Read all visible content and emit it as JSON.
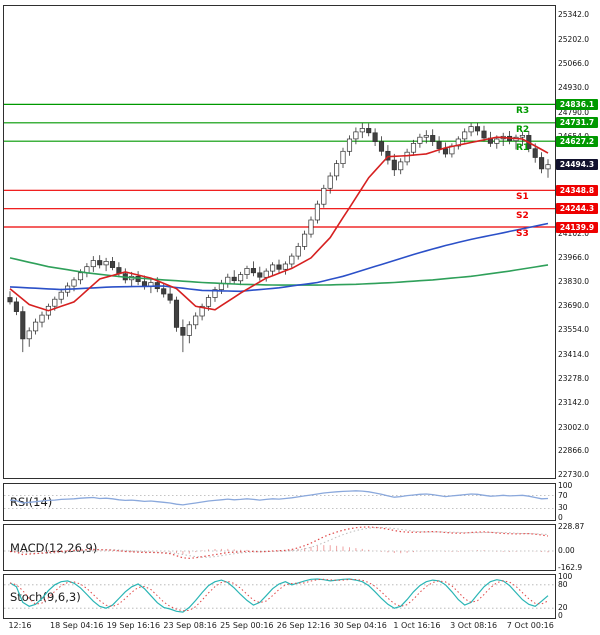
{
  "chart_data": {
    "type": "candlestick-with-indicators",
    "colors": {
      "resistance": "#009900",
      "support": "#ee0000",
      "current_badge": "#12122e",
      "up_candle": "#ffffff",
      "down_candle": "#404040",
      "wick": "#303030",
      "grid": "#b0b0b0",
      "axis_text": "#111111"
    },
    "main": {
      "y_range": [
        22715,
        25395
      ],
      "y_ticks": [
        25342.0,
        25202.0,
        25066.0,
        24930.0,
        24790.0,
        24654.0,
        24102.0,
        23966.0,
        23830.0,
        23690.0,
        23554.0,
        23414.0,
        23278.0,
        23142.0,
        23002.0,
        22866.0,
        22730.0
      ],
      "levels": {
        "resistances": [
          {
            "name": "R3",
            "value": 24836.1
          },
          {
            "name": "R2",
            "value": 24731.7
          },
          {
            "name": "R1",
            "value": 24627.2
          }
        ],
        "supports": [
          {
            "name": "S1",
            "value": 24348.8
          },
          {
            "name": "S2",
            "value": 24244.3
          },
          {
            "name": "S3",
            "value": 24139.9
          }
        ],
        "current_price": 24494.3
      },
      "candles_ohlc": [
        [
          23740,
          23775,
          23700,
          23715
        ],
        [
          23715,
          23740,
          23640,
          23660
        ],
        [
          23660,
          23690,
          23430,
          23505
        ],
        [
          23505,
          23570,
          23460,
          23550
        ],
        [
          23550,
          23620,
          23530,
          23600
        ],
        [
          23600,
          23660,
          23570,
          23640
        ],
        [
          23640,
          23705,
          23615,
          23690
        ],
        [
          23690,
          23745,
          23665,
          23730
        ],
        [
          23730,
          23790,
          23705,
          23770
        ],
        [
          23770,
          23825,
          23745,
          23805
        ],
        [
          23805,
          23855,
          23775,
          23840
        ],
        [
          23840,
          23900,
          23815,
          23880
        ],
        [
          23880,
          23935,
          23855,
          23915
        ],
        [
          23915,
          23975,
          23885,
          23950
        ],
        [
          23950,
          23980,
          23905,
          23925
        ],
        [
          23925,
          23965,
          23890,
          23945
        ],
        [
          23945,
          23970,
          23895,
          23910
        ],
        [
          23910,
          23940,
          23855,
          23875
        ],
        [
          23875,
          23905,
          23820,
          23840
        ],
        [
          23840,
          23885,
          23805,
          23860
        ],
        [
          23860,
          23890,
          23810,
          23830
        ],
        [
          23830,
          23865,
          23785,
          23805
        ],
        [
          23805,
          23845,
          23765,
          23825
        ],
        [
          23825,
          23855,
          23770,
          23790
        ],
        [
          23790,
          23820,
          23740,
          23760
        ],
        [
          23760,
          23795,
          23705,
          23725
        ],
        [
          23725,
          23745,
          23545,
          23570
        ],
        [
          23570,
          23615,
          23430,
          23525
        ],
        [
          23525,
          23605,
          23480,
          23585
        ],
        [
          23585,
          23655,
          23560,
          23635
        ],
        [
          23635,
          23705,
          23610,
          23690
        ],
        [
          23690,
          23755,
          23665,
          23740
        ],
        [
          23740,
          23800,
          23715,
          23785
        ],
        [
          23785,
          23840,
          23760,
          23820
        ],
        [
          23820,
          23875,
          23795,
          23855
        ],
        [
          23855,
          23895,
          23815,
          23835
        ],
        [
          23835,
          23885,
          23810,
          23870
        ],
        [
          23870,
          23920,
          23845,
          23905
        ],
        [
          23905,
          23945,
          23860,
          23880
        ],
        [
          23880,
          23915,
          23835,
          23855
        ],
        [
          23855,
          23905,
          23830,
          23890
        ],
        [
          23890,
          23940,
          23865,
          23925
        ],
        [
          23925,
          23955,
          23880,
          23900
        ],
        [
          23900,
          23945,
          23870,
          23930
        ],
        [
          23930,
          23990,
          23910,
          23975
        ],
        [
          23975,
          24050,
          23955,
          24030
        ],
        [
          24030,
          24120,
          24010,
          24100
        ],
        [
          24100,
          24200,
          24080,
          24180
        ],
        [
          24180,
          24290,
          24160,
          24270
        ],
        [
          24270,
          24380,
          24250,
          24360
        ],
        [
          24360,
          24450,
          24330,
          24430
        ],
        [
          24430,
          24520,
          24405,
          24500
        ],
        [
          24500,
          24590,
          24475,
          24570
        ],
        [
          24570,
          24660,
          24545,
          24640
        ],
        [
          24640,
          24705,
          24610,
          24680
        ],
        [
          24680,
          24730,
          24645,
          24700
        ],
        [
          24700,
          24728,
          24655,
          24675
        ],
        [
          24675,
          24700,
          24600,
          24625
        ],
        [
          24625,
          24655,
          24545,
          24570
        ],
        [
          24570,
          24605,
          24495,
          24520
        ],
        [
          24520,
          24555,
          24430,
          24465
        ],
        [
          24465,
          24530,
          24440,
          24510
        ],
        [
          24510,
          24585,
          24490,
          24565
        ],
        [
          24565,
          24635,
          24545,
          24615
        ],
        [
          24615,
          24670,
          24590,
          24650
        ],
        [
          24650,
          24690,
          24615,
          24660
        ],
        [
          24660,
          24695,
          24600,
          24625
        ],
        [
          24625,
          24655,
          24560,
          24585
        ],
        [
          24585,
          24620,
          24535,
          24555
        ],
        [
          24555,
          24615,
          24535,
          24600
        ],
        [
          24600,
          24655,
          24580,
          24640
        ],
        [
          24640,
          24700,
          24620,
          24680
        ],
        [
          24680,
          24730,
          24655,
          24710
        ],
        [
          24710,
          24732,
          24660,
          24685
        ],
        [
          24685,
          24715,
          24625,
          24645
        ],
        [
          24645,
          24680,
          24595,
          24615
        ],
        [
          24615,
          24660,
          24585,
          24640
        ],
        [
          24640,
          24675,
          24600,
          24655
        ],
        [
          24655,
          24685,
          24610,
          24630
        ],
        [
          24630,
          24665,
          24580,
          24650
        ],
        [
          24650,
          24680,
          24600,
          24660
        ],
        [
          24660,
          24685,
          24565,
          24585
        ],
        [
          24585,
          24615,
          24505,
          24535
        ],
        [
          24535,
          24565,
          24445,
          24470
        ],
        [
          24470,
          24525,
          24420,
          24494
        ]
      ],
      "moving_averages": [
        {
          "name": "slow-ma",
          "color": "#2fa05a",
          "points": [
            [
              0,
              23965
            ],
            [
              6,
              23915
            ],
            [
              12,
              23880
            ],
            [
              18,
              23855
            ],
            [
              24,
              23840
            ],
            [
              30,
              23825
            ],
            [
              36,
              23815
            ],
            [
              42,
              23810
            ],
            [
              48,
              23810
            ],
            [
              54,
              23815
            ],
            [
              60,
              23825
            ],
            [
              66,
              23840
            ],
            [
              72,
              23860
            ],
            [
              78,
              23890
            ],
            [
              84,
              23925
            ]
          ]
        },
        {
          "name": "medium-ma",
          "color": "#2b50c8",
          "points": [
            [
              0,
              23800
            ],
            [
              8,
              23785
            ],
            [
              16,
              23800
            ],
            [
              24,
              23805
            ],
            [
              30,
              23780
            ],
            [
              36,
              23775
            ],
            [
              42,
              23795
            ],
            [
              48,
              23825
            ],
            [
              52,
              23860
            ],
            [
              56,
              23905
            ],
            [
              60,
              23950
            ],
            [
              64,
              23995
            ],
            [
              68,
              24035
            ],
            [
              72,
              24070
            ],
            [
              76,
              24100
            ],
            [
              80,
              24130
            ],
            [
              84,
              24160
            ]
          ]
        },
        {
          "name": "fast-ma",
          "color": "#d62020",
          "points": [
            [
              0,
              23790
            ],
            [
              3,
              23700
            ],
            [
              6,
              23665
            ],
            [
              10,
              23715
            ],
            [
              14,
              23845
            ],
            [
              18,
              23885
            ],
            [
              22,
              23850
            ],
            [
              26,
              23790
            ],
            [
              29,
              23690
            ],
            [
              32,
              23670
            ],
            [
              36,
              23765
            ],
            [
              40,
              23850
            ],
            [
              44,
              23905
            ],
            [
              47,
              23965
            ],
            [
              50,
              24080
            ],
            [
              53,
              24250
            ],
            [
              56,
              24420
            ],
            [
              59,
              24540
            ],
            [
              62,
              24545
            ],
            [
              65,
              24555
            ],
            [
              68,
              24590
            ],
            [
              72,
              24620
            ],
            [
              76,
              24650
            ],
            [
              80,
              24640
            ],
            [
              84,
              24560
            ]
          ]
        }
      ]
    },
    "x_labels": [
      "12:16",
      "18 Sep 04:16",
      "19 Sep 16:16",
      "23 Sep 08:16",
      "25 Sep 00:16",
      "26 Sep 12:16",
      "30 Sep 04:16",
      "1 Oct 16:16",
      "3 Oct 08:16",
      "7 Oct 00:16"
    ],
    "indicators": {
      "rsi": {
        "label": "RSI(14)",
        "range": [
          0,
          100
        ],
        "grid": [
          70,
          30
        ],
        "axis_values": [
          100,
          70,
          30,
          0
        ],
        "axis_labels": [
          "100",
          "70",
          "30",
          "0"
        ],
        "color": "#8aa8dc",
        "values": [
          56,
          54,
          47,
          49,
          51,
          53,
          55,
          56,
          58,
          59,
          60,
          62,
          63,
          64,
          61,
          62,
          60,
          57,
          55,
          56,
          54,
          52,
          53,
          51,
          49,
          47,
          43,
          41,
          44,
          47,
          50,
          53,
          55,
          57,
          59,
          57,
          58,
          60,
          58,
          56,
          58,
          60,
          59,
          61,
          63,
          66,
          69,
          72,
          75,
          78,
          80,
          82,
          83,
          84,
          85,
          84,
          82,
          78,
          74,
          69,
          65,
          67,
          70,
          72,
          74,
          75,
          73,
          70,
          67,
          69,
          71,
          73,
          75,
          74,
          71,
          68,
          69,
          71,
          69,
          70,
          71,
          68,
          64,
          60,
          61
        ]
      },
      "macd": {
        "label": "MACD(12,26,9)",
        "range": [
          -162.9,
          228.87
        ],
        "axis_values": [
          228.87,
          0,
          -162.9
        ],
        "axis_labels": [
          "228.87",
          "0.00",
          "-162.9"
        ],
        "color": "#e04848",
        "signal_color": "#bbbbbb",
        "values": [
          -5,
          -10,
          -35,
          -30,
          -25,
          -20,
          -15,
          -10,
          -5,
          0,
          5,
          8,
          12,
          15,
          12,
          10,
          8,
          2,
          -5,
          -8,
          -12,
          -15,
          -14,
          -16,
          -20,
          -25,
          -45,
          -65,
          -70,
          -65,
          -55,
          -45,
          -35,
          -25,
          -15,
          -12,
          -8,
          -3,
          -5,
          -8,
          -5,
          0,
          2,
          5,
          15,
          30,
          50,
          75,
          105,
          135,
          160,
          180,
          198,
          212,
          222,
          228,
          229,
          225,
          218,
          208,
          195,
          185,
          180,
          178,
          180,
          183,
          185,
          182,
          176,
          172,
          170,
          172,
          176,
          180,
          182,
          178,
          172,
          168,
          165,
          163,
          165,
          166,
          160,
          152,
          143
        ]
      },
      "stoch": {
        "label": "Stoch(9,6,3)",
        "range": [
          0,
          100
        ],
        "grid": [
          80,
          20
        ],
        "axis_values": [
          100,
          80,
          20,
          0
        ],
        "axis_labels": [
          "100",
          "80",
          "20",
          "0"
        ],
        "k_color": "#2ab5b5",
        "d_color": "#e04848",
        "k_values": [
          85,
          75,
          35,
          25,
          30,
          45,
          65,
          80,
          88,
          90,
          84,
          72,
          55,
          38,
          25,
          20,
          28,
          45,
          62,
          75,
          82,
          70,
          52,
          34,
          22,
          18,
          12,
          10,
          22,
          40,
          60,
          78,
          88,
          92,
          86,
          72,
          55,
          40,
          28,
          35,
          52,
          70,
          82,
          88,
          80,
          85,
          90,
          94,
          95,
          93,
          90,
          92,
          94,
          95,
          92,
          88,
          78,
          62,
          45,
          30,
          20,
          25,
          42,
          62,
          78,
          88,
          92,
          90,
          80,
          62,
          42,
          28,
          35,
          55,
          75,
          88,
          93,
          90,
          78,
          60,
          42,
          30,
          25,
          38,
          52
        ]
      }
    }
  }
}
